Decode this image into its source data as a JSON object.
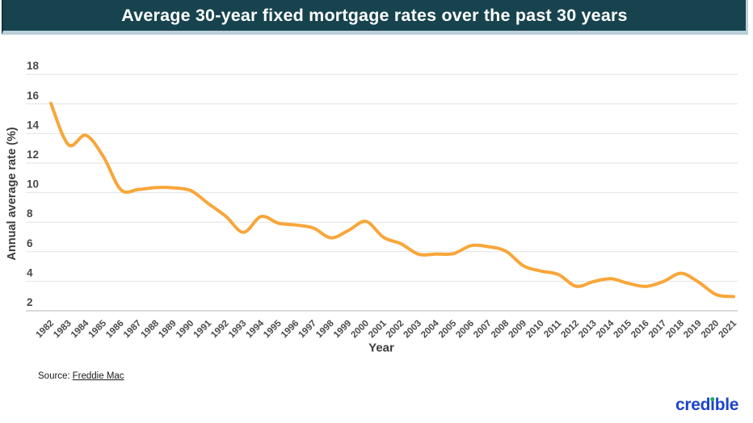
{
  "header": {
    "title": "Average 30-year fixed mortgage rates over the past 30 years"
  },
  "chart_data": {
    "type": "line",
    "title": "Average 30-year fixed mortgage rates over the past 30 years",
    "xlabel": "Year",
    "ylabel": "Annual average rate (%)",
    "x": [
      1982,
      1983,
      1984,
      1985,
      1986,
      1987,
      1988,
      1989,
      1990,
      1991,
      1992,
      1993,
      1994,
      1995,
      1996,
      1997,
      1998,
      1999,
      2000,
      2001,
      2002,
      2003,
      2004,
      2005,
      2006,
      2007,
      2008,
      2009,
      2010,
      2011,
      2012,
      2013,
      2014,
      2015,
      2016,
      2017,
      2018,
      2019,
      2020,
      2021
    ],
    "values": [
      16.04,
      13.24,
      13.88,
      12.43,
      10.19,
      10.21,
      10.34,
      10.32,
      10.13,
      9.25,
      8.39,
      7.31,
      8.38,
      7.93,
      7.81,
      7.6,
      6.94,
      7.44,
      8.05,
      6.97,
      6.54,
      5.83,
      5.84,
      5.87,
      6.41,
      6.34,
      6.03,
      5.04,
      4.69,
      4.45,
      3.66,
      3.98,
      4.17,
      3.85,
      3.65,
      3.99,
      4.54,
      3.94,
      3.1,
      2.96
    ],
    "ylim": [
      2,
      18
    ],
    "yticks": [
      2,
      4,
      6,
      8,
      10,
      12,
      14,
      16,
      18
    ],
    "grid": true,
    "legend": "none",
    "smoothing": "spline",
    "line_color": "#F8A63A"
  },
  "footer": {
    "source_label": "Source:",
    "source_link_text": "Freddie Mac"
  },
  "branding": {
    "logo_prefix": "cred",
    "logo_i": "i",
    "logo_suffix": "ble",
    "logo_blue": "#1D45C8",
    "logo_dot_green": "#27A862"
  },
  "colors": {
    "header_bg": "#17434E",
    "header_border": "#BACFD9",
    "grid_line": "#E2E2E2",
    "base_line": "#DBDBDB",
    "axis_text": "#4A4A4A"
  }
}
